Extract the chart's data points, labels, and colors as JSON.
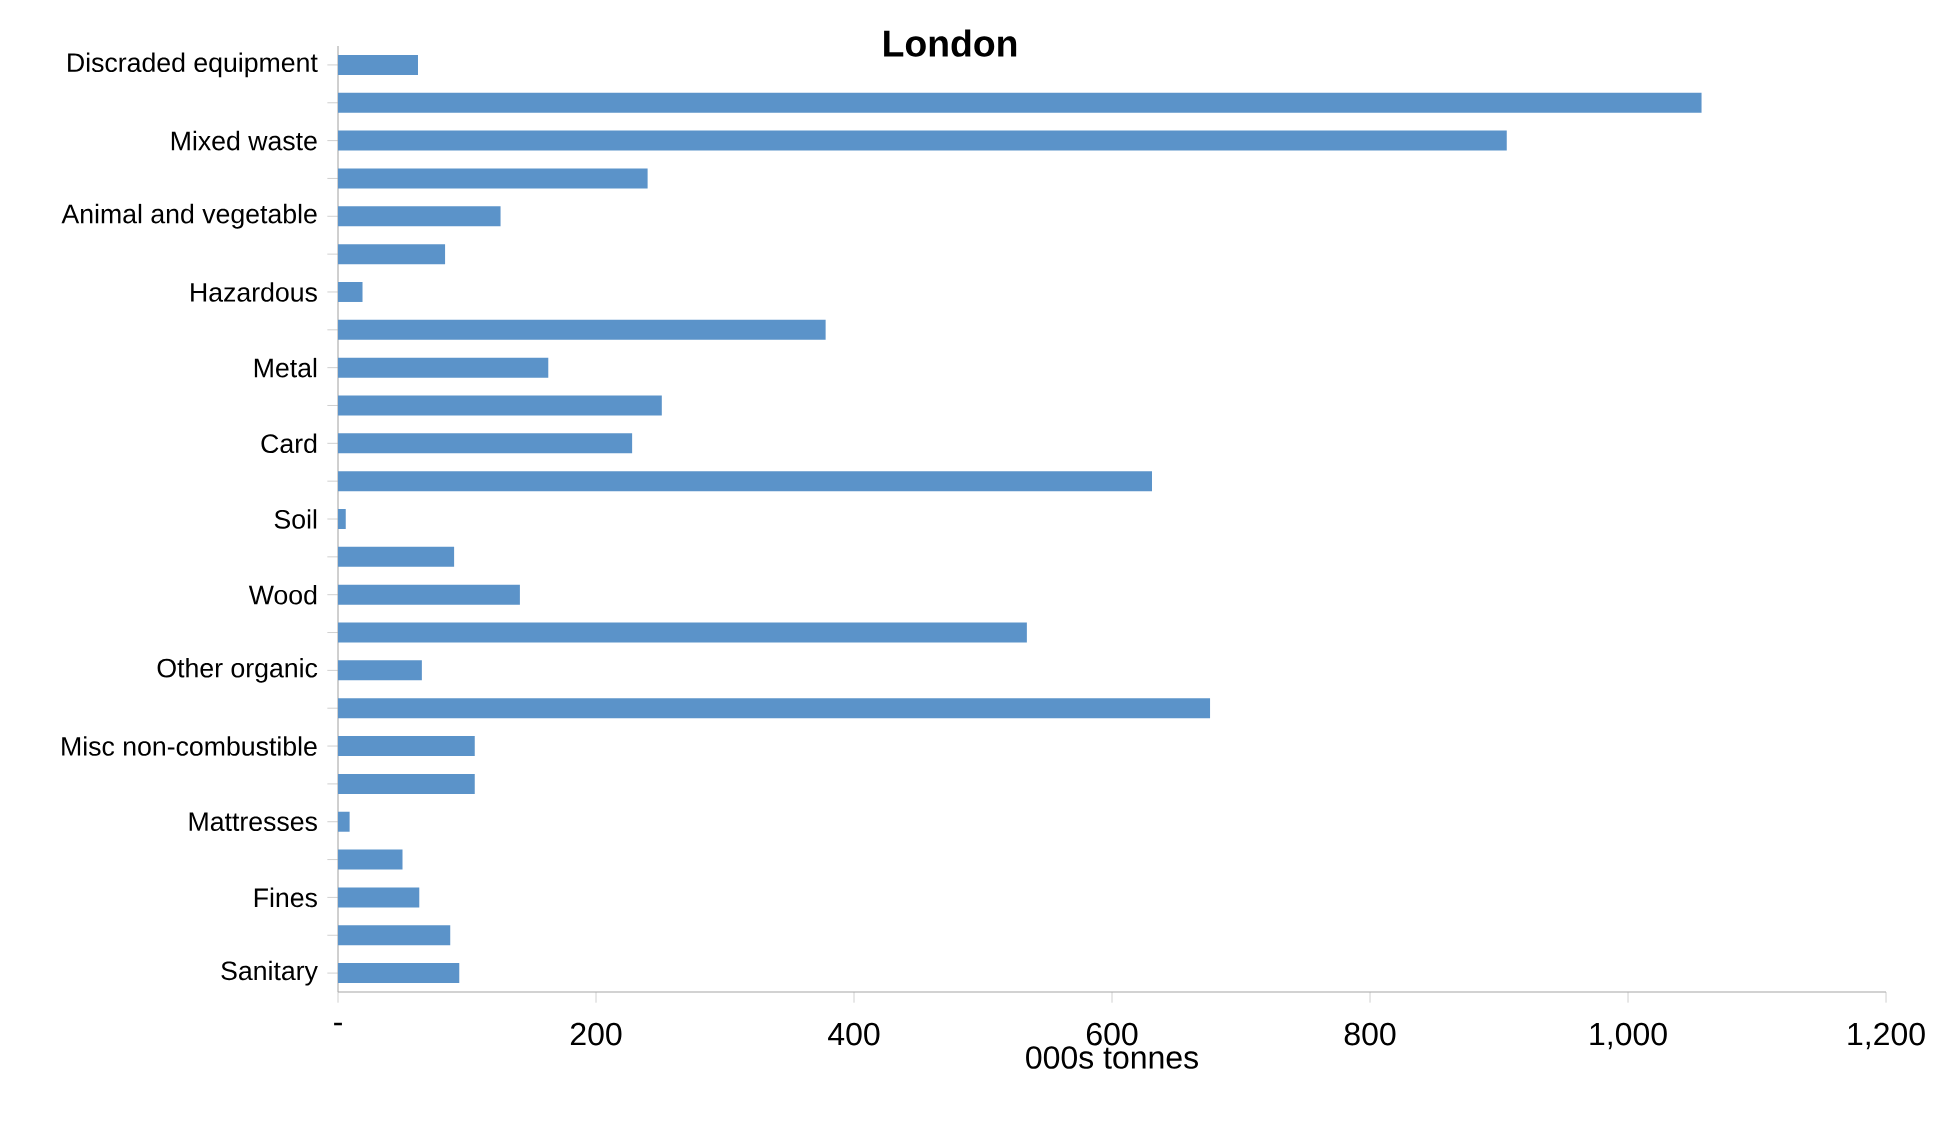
{
  "chart_data": {
    "type": "bar",
    "orientation": "horizontal",
    "title": "London",
    "xlabel": "000s tonnes",
    "categories": [
      "Discraded equipment",
      null,
      "Mixed waste",
      null,
      "Animal and vegetable",
      null,
      "Hazardous",
      null,
      "Metal",
      null,
      "Card",
      null,
      "Soil",
      null,
      "Wood",
      null,
      "Other organic",
      null,
      "Misc non-combustible",
      null,
      "Mattresses",
      null,
      "Fines",
      null,
      "Sanitary"
    ],
    "values": [
      62,
      1057,
      906,
      240,
      126,
      83,
      19,
      378,
      163,
      251,
      228,
      631,
      6,
      90,
      141,
      534,
      65,
      676,
      106,
      106,
      9,
      50,
      63,
      87,
      94
    ],
    "color": "#5b93c9",
    "xlim": [
      0,
      1200
    ],
    "xticks": [
      {
        "value": 0,
        "label": "-"
      },
      200,
      400,
      600,
      800,
      {
        "value": 1000,
        "label": "1,000"
      },
      {
        "value": 1200,
        "label": "1,200"
      }
    ],
    "grid": false
  }
}
